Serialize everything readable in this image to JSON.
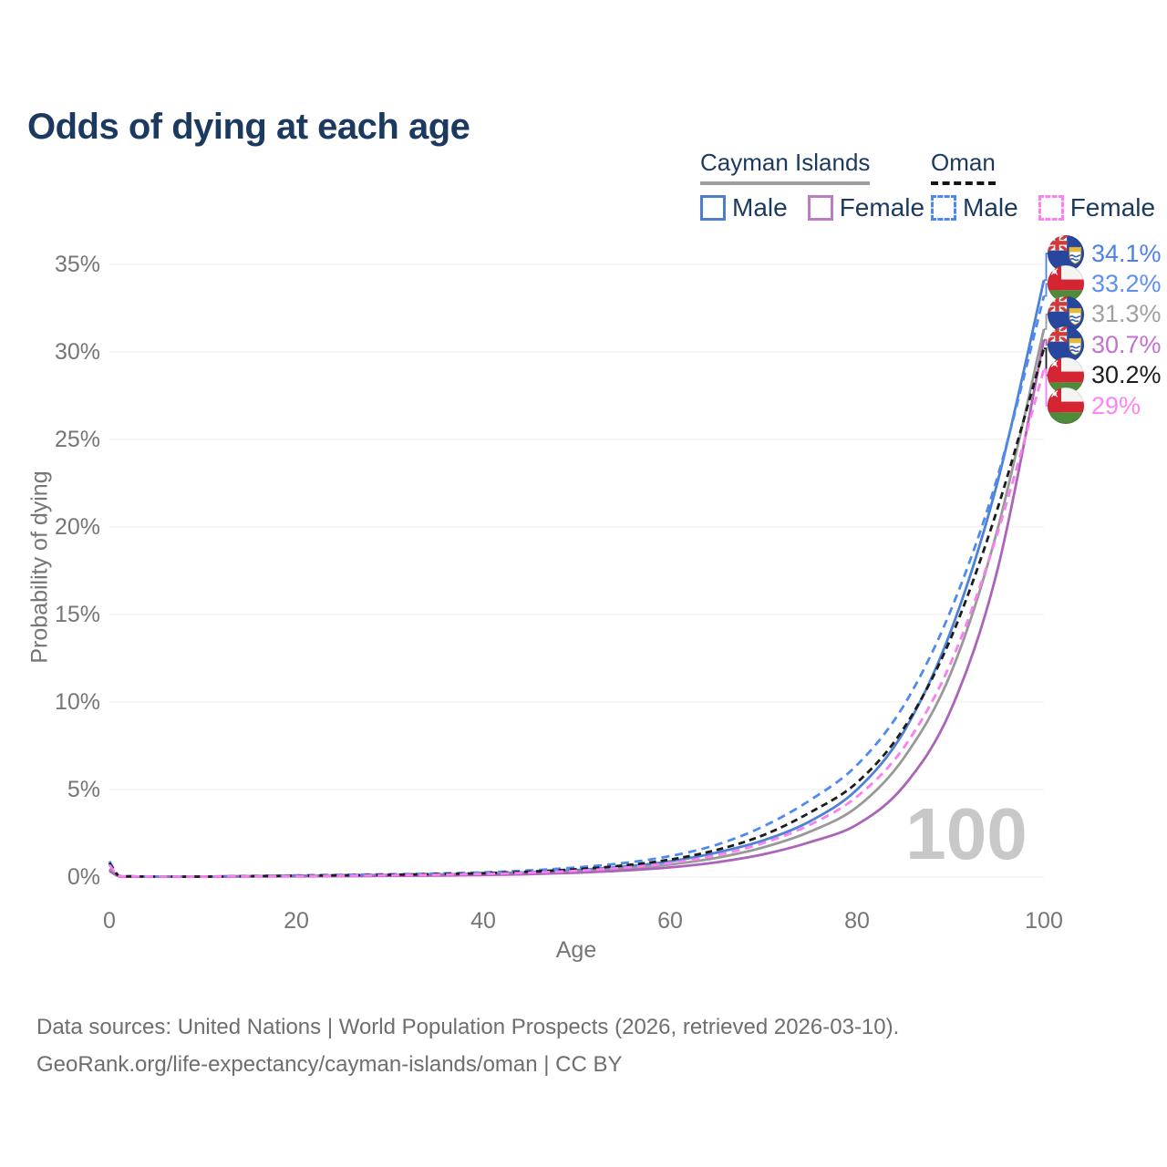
{
  "header": {
    "title": "Odds of dying at each age"
  },
  "legend": {
    "groups": [
      {
        "label": "Cayman Islands",
        "underline": "solid",
        "underline_color": "#9e9e9e",
        "items": [
          {
            "label": "Male",
            "style": "solid",
            "color": "#4c7fc8"
          },
          {
            "label": "Female",
            "style": "solid",
            "color": "#bd7cc0"
          }
        ]
      },
      {
        "label": "Oman",
        "underline": "dashed",
        "underline_color": "#141414",
        "items": [
          {
            "label": "Male",
            "style": "dashed",
            "color": "#4c86f0"
          },
          {
            "label": "Female",
            "style": "dashed",
            "color": "#fb80f0"
          }
        ]
      }
    ]
  },
  "chart_data": {
    "type": "line",
    "title": "Odds of dying at each age",
    "xlabel": "Age",
    "ylabel": "Probability of dying",
    "x_ticks": [
      0,
      20,
      40,
      60,
      80,
      100
    ],
    "y_ticks": [
      "0%",
      "5%",
      "10%",
      "15%",
      "20%",
      "25%",
      "30%",
      "35%"
    ],
    "xlim": [
      0,
      100
    ],
    "ylim": [
      0,
      36.5
    ],
    "grid": "horizontal",
    "watermark": "100",
    "ages": [
      0,
      1,
      2,
      5,
      10,
      15,
      20,
      25,
      30,
      35,
      40,
      45,
      50,
      55,
      60,
      65,
      70,
      75,
      80,
      85,
      90,
      95,
      100
    ],
    "series": [
      {
        "name": "Cayman Islands — Male",
        "group": "Cayman Islands",
        "sex": "Male",
        "style": "solid",
        "color": "#4d81d6",
        "label_color": "#4c80e8",
        "end_label": "34.1%",
        "end_value": 34.1,
        "flag": "cayman",
        "values": [
          0.45,
          0.05,
          0.03,
          0.02,
          0.02,
          0.05,
          0.08,
          0.1,
          0.12,
          0.15,
          0.2,
          0.28,
          0.4,
          0.6,
          0.9,
          1.4,
          2.1,
          3.2,
          5.0,
          8.3,
          14.0,
          22.5,
          34.1
        ]
      },
      {
        "name": "Oman — Male",
        "group": "Oman",
        "sex": "Male",
        "style": "dashed",
        "color": "#4e8af0",
        "label_color": "#5d8ff2",
        "end_label": "33.2%",
        "end_value": 33.2,
        "flag": "oman",
        "values": [
          0.9,
          0.08,
          0.05,
          0.03,
          0.03,
          0.06,
          0.1,
          0.13,
          0.16,
          0.2,
          0.27,
          0.38,
          0.55,
          0.8,
          1.2,
          1.85,
          2.9,
          4.4,
          6.4,
          9.8,
          15.2,
          22.8,
          33.2
        ]
      },
      {
        "name": "Cayman Islands — Both sexes",
        "group": "Cayman Islands",
        "sex": "Both sexes",
        "style": "solid",
        "color": "#999999",
        "label_color": "#a0a0a0",
        "end_label": "31.3%",
        "end_value": 31.3,
        "flag": "cayman",
        "values": [
          0.4,
          0.045,
          0.03,
          0.02,
          0.02,
          0.04,
          0.06,
          0.08,
          0.1,
          0.12,
          0.16,
          0.22,
          0.32,
          0.48,
          0.72,
          1.1,
          1.7,
          2.6,
          4.0,
          6.8,
          11.6,
          19.8,
          31.3
        ]
      },
      {
        "name": "Cayman Islands — Female",
        "group": "Cayman Islands",
        "sex": "Female",
        "style": "solid",
        "color": "#aa64b8",
        "label_color": "#c272cc",
        "end_label": "30.7%",
        "end_value": 30.7,
        "flag": "cayman",
        "values": [
          0.35,
          0.04,
          0.02,
          0.015,
          0.015,
          0.03,
          0.04,
          0.05,
          0.07,
          0.09,
          0.12,
          0.17,
          0.25,
          0.37,
          0.55,
          0.85,
          1.3,
          2.0,
          3.0,
          5.2,
          9.5,
          17.5,
          30.7
        ]
      },
      {
        "name": "Oman — Both sexes",
        "group": "Oman",
        "sex": "Both sexes",
        "style": "dashed",
        "color": "#1c1c1c",
        "label_color": "#1c1c1c",
        "end_label": "30.2%",
        "end_value": 30.2,
        "flag": "oman",
        "values": [
          0.8,
          0.07,
          0.04,
          0.025,
          0.025,
          0.05,
          0.08,
          0.1,
          0.13,
          0.17,
          0.22,
          0.31,
          0.45,
          0.66,
          1.0,
          1.55,
          2.4,
          3.7,
          5.4,
          8.5,
          13.6,
          21.0,
          30.2
        ]
      },
      {
        "name": "Oman — Female",
        "group": "Oman",
        "sex": "Female",
        "style": "dashed",
        "color": "#fb7ef2",
        "label_color": "#fd84f2",
        "end_label": "29%",
        "end_value": 29.0,
        "flag": "oman",
        "values": [
          0.7,
          0.06,
          0.04,
          0.02,
          0.02,
          0.04,
          0.06,
          0.08,
          0.1,
          0.13,
          0.18,
          0.25,
          0.36,
          0.53,
          0.8,
          1.25,
          1.95,
          3.0,
          4.6,
          7.4,
          12.2,
          19.6,
          29.0
        ]
      }
    ]
  },
  "footer": {
    "line1": "Data sources: United Nations | World Population Prospects (2026, retrieved 2026-03-10).",
    "line2": "GeoRank.org/life-expectancy/cayman-islands/oman | CC BY"
  }
}
